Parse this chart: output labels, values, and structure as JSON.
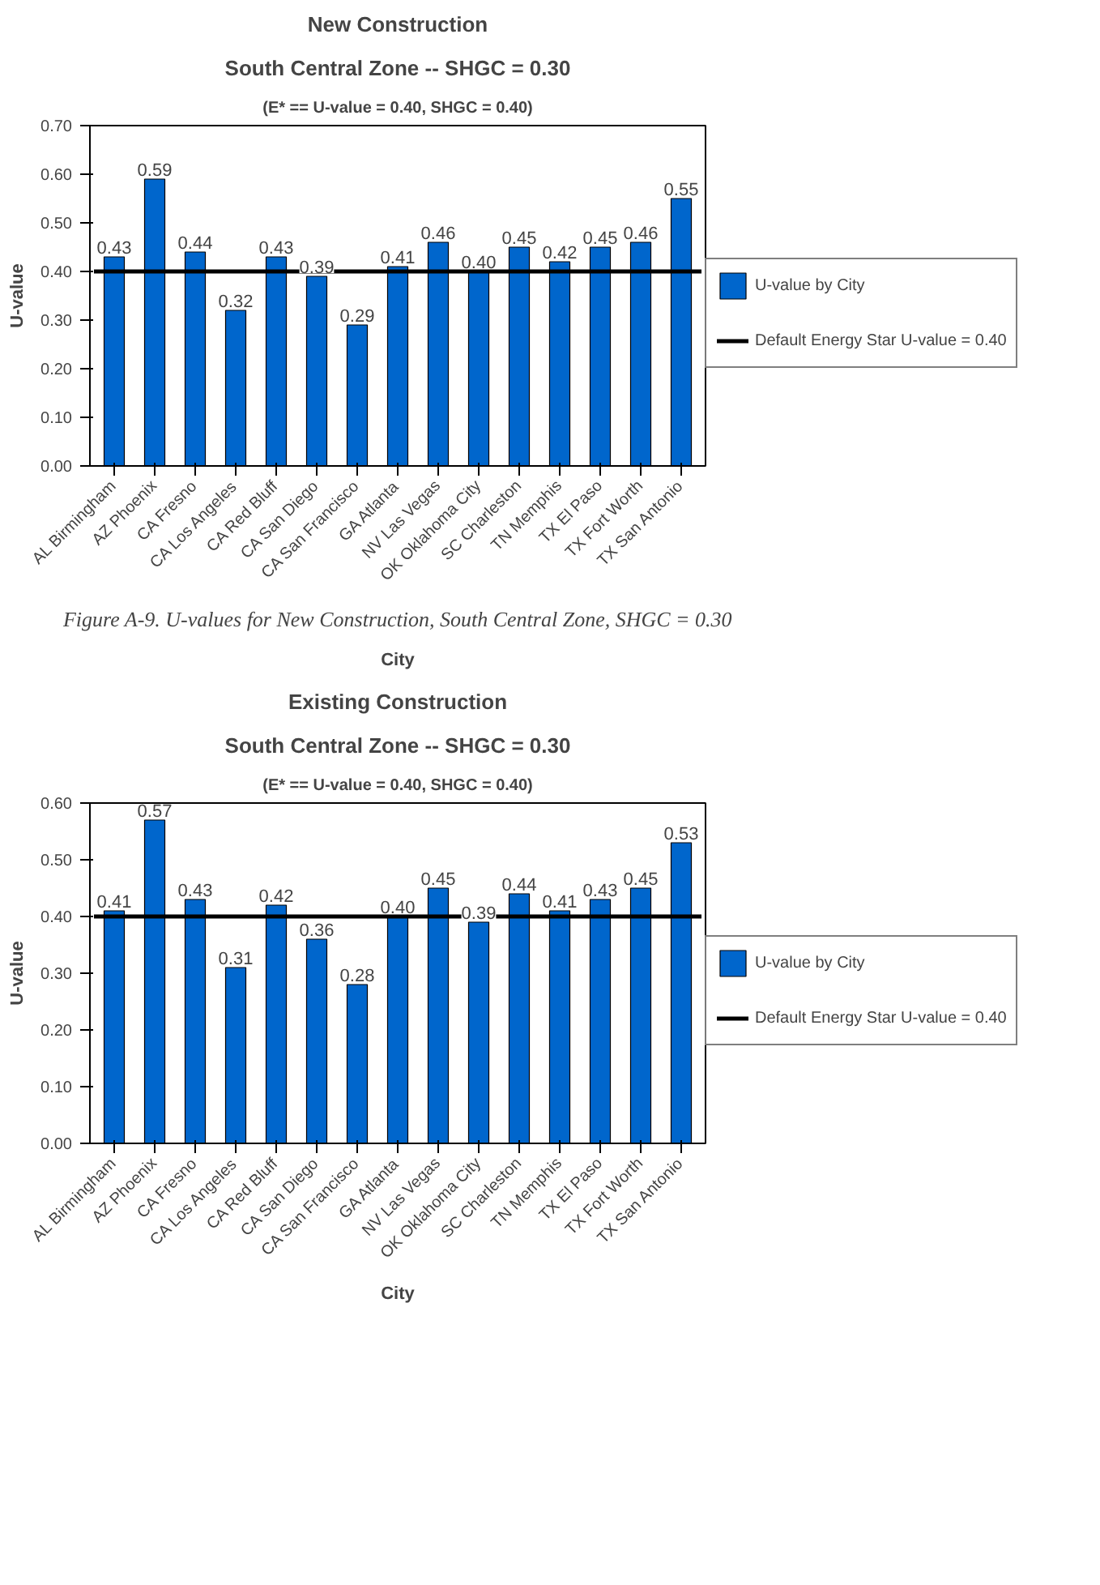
{
  "chart_data": [
    {
      "type": "bar",
      "title": "New Construction",
      "subtitle": "South Central Zone -- SHGC = 0.30",
      "annotations": [
        "(E* == U-value = 0.40, SHGC = 0.40)",
        "Figure A-9. U-values for New Construction, South Central Zone, SHGC = 0.30"
      ],
      "xlabel": "City",
      "ylabel": "U-value",
      "categories": [
        "AL Birmingham",
        "AZ Phoenix",
        "CA Fresno",
        "CA Los Angeles",
        "CA Red Bluff",
        "CA San Diego",
        "CA San Francisco",
        "GA Atlanta",
        "NV Las Vegas",
        "OK Oklahoma City",
        "SC Charleston",
        "TN Memphis",
        "TX El Paso",
        "TX Fort Worth",
        "TX San Antonio"
      ],
      "series": [
        {
          "name": "U-value by City",
          "color": "#0066cc",
          "values": [
            0.43,
            0.59,
            0.44,
            0.32,
            0.43,
            0.39,
            0.29,
            0.41,
            0.46,
            0.4,
            0.45,
            0.42,
            0.45,
            0.46,
            0.55
          ],
          "value_labels": [
            "0.43",
            "0.59",
            "0.44",
            "0.32",
            "0.43",
            "0.39",
            "0.29",
            "0.41",
            "0.46",
            "0.40",
            "0.45",
            "0.42",
            "0.45",
            "0.46",
            "0.55"
          ]
        }
      ],
      "ref_lines": [
        {
          "axis": "y",
          "value": 0.4,
          "label": "Default Energy Star U-value = 0.40",
          "color": "#000000"
        }
      ],
      "ylim": [
        0,
        0.7
      ],
      "yticks": [
        {
          "value": 0,
          "label": "0.00"
        },
        {
          "value": 0.1,
          "label": "0.10"
        },
        {
          "value": 0.2,
          "label": "0.20"
        },
        {
          "value": 0.3,
          "label": "0.30"
        },
        {
          "value": 0.4,
          "label": "0.40"
        },
        {
          "value": 0.5,
          "label": "0.50"
        },
        {
          "value": 0.6,
          "label": "0.60"
        },
        {
          "value": 0.7,
          "label": "0.70"
        }
      ],
      "grid": false,
      "legend": "right"
    },
    {
      "type": "bar",
      "title": "Existing Construction",
      "subtitle": "South Central Zone -- SHGC = 0.30",
      "annotations": [
        "(E* == U-value = 0.40, SHGC = 0.40)"
      ],
      "xlabel": "City",
      "ylabel": "U-value",
      "categories": [
        "AL Birmingham",
        "AZ Phoenix",
        "CA Fresno",
        "CA Los Angeles",
        "CA Red Bluff",
        "CA San Diego",
        "CA San Francisco",
        "GA Atlanta",
        "NV Las Vegas",
        "OK Oklahoma City",
        "SC Charleston",
        "TN Memphis",
        "TX El Paso",
        "TX Fort Worth",
        "TX San Antonio"
      ],
      "series": [
        {
          "name": "U-value by City",
          "color": "#0066cc",
          "values": [
            0.41,
            0.57,
            0.43,
            0.31,
            0.42,
            0.36,
            0.28,
            0.4,
            0.45,
            0.39,
            0.44,
            0.41,
            0.43,
            0.45,
            0.53
          ],
          "value_labels": [
            "0.41",
            "0.57",
            "0.43",
            "0.31",
            "0.42",
            "0.36",
            "0.28",
            "0.40",
            "0.45",
            "0.39",
            "0.44",
            "0.41",
            "0.43",
            "0.45",
            "0.53"
          ]
        }
      ],
      "ref_lines": [
        {
          "axis": "y",
          "value": 0.4,
          "label": "Default Energy Star U-value = 0.40",
          "color": "#000000"
        }
      ],
      "ylim": [
        0,
        0.6
      ],
      "yticks": [
        {
          "value": 0,
          "label": "0.00"
        },
        {
          "value": 0.1,
          "label": "0.10"
        },
        {
          "value": 0.2,
          "label": "0.20"
        },
        {
          "value": 0.3,
          "label": "0.30"
        },
        {
          "value": 0.4,
          "label": "0.40"
        },
        {
          "value": 0.5,
          "label": "0.50"
        },
        {
          "value": 0.6,
          "label": "0.60"
        }
      ],
      "grid": false,
      "legend": "right"
    }
  ]
}
